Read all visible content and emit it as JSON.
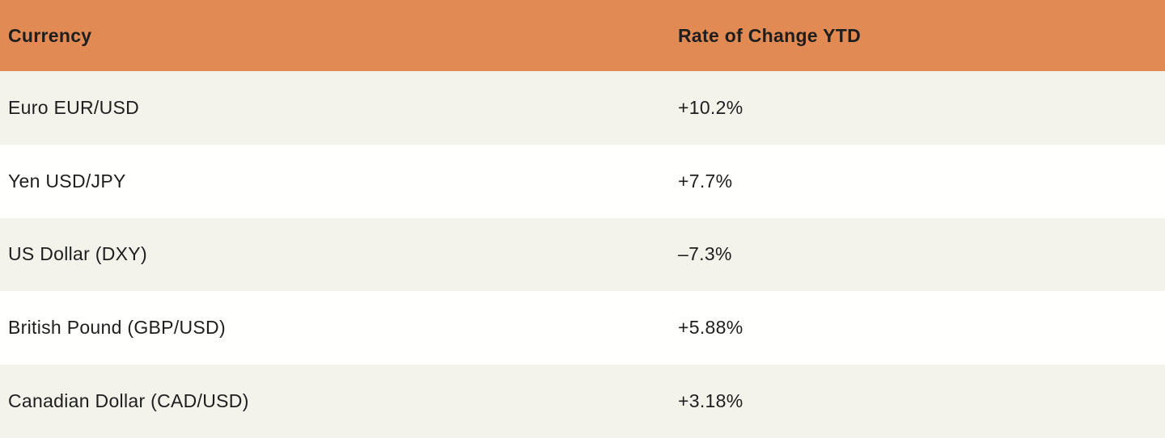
{
  "table": {
    "columns": [
      {
        "label": "Currency"
      },
      {
        "label": "Rate of Change YTD"
      }
    ],
    "rows": [
      {
        "currency": "Euro EUR/USD",
        "rate": "+10.2%"
      },
      {
        "currency": "Yen USD/JPY",
        "rate": "+7.7%"
      },
      {
        "currency": "US Dollar (DXY)",
        "rate": "–7.3%"
      },
      {
        "currency": "British Pound (GBP/USD)",
        "rate": "+5.88%"
      },
      {
        "currency": "Canadian Dollar (CAD/USD)",
        "rate": "+3.18%"
      }
    ]
  },
  "colors": {
    "header_bg": "#E18A53",
    "row_cream_bg": "#F3F2EB",
    "row_white_bg": "#FFFFFE",
    "text": "#1E1E1E"
  },
  "chart_data": {
    "type": "table",
    "title": "",
    "columns": [
      "Currency",
      "Rate of Change YTD"
    ],
    "categories": [
      "Euro EUR/USD",
      "Yen USD/JPY",
      "US Dollar (DXY)",
      "British Pound (GBP/USD)",
      "Canadian Dollar (CAD/USD)"
    ],
    "values_pct": [
      10.2,
      7.7,
      -7.3,
      5.88,
      3.18
    ],
    "value_labels": [
      "+10.2%",
      "+7.7%",
      "–7.3%",
      "+5.88%",
      "+3.18%"
    ],
    "layout": "two-column striped table, orange header row, alternating cream/white body rows, no gridlines"
  }
}
